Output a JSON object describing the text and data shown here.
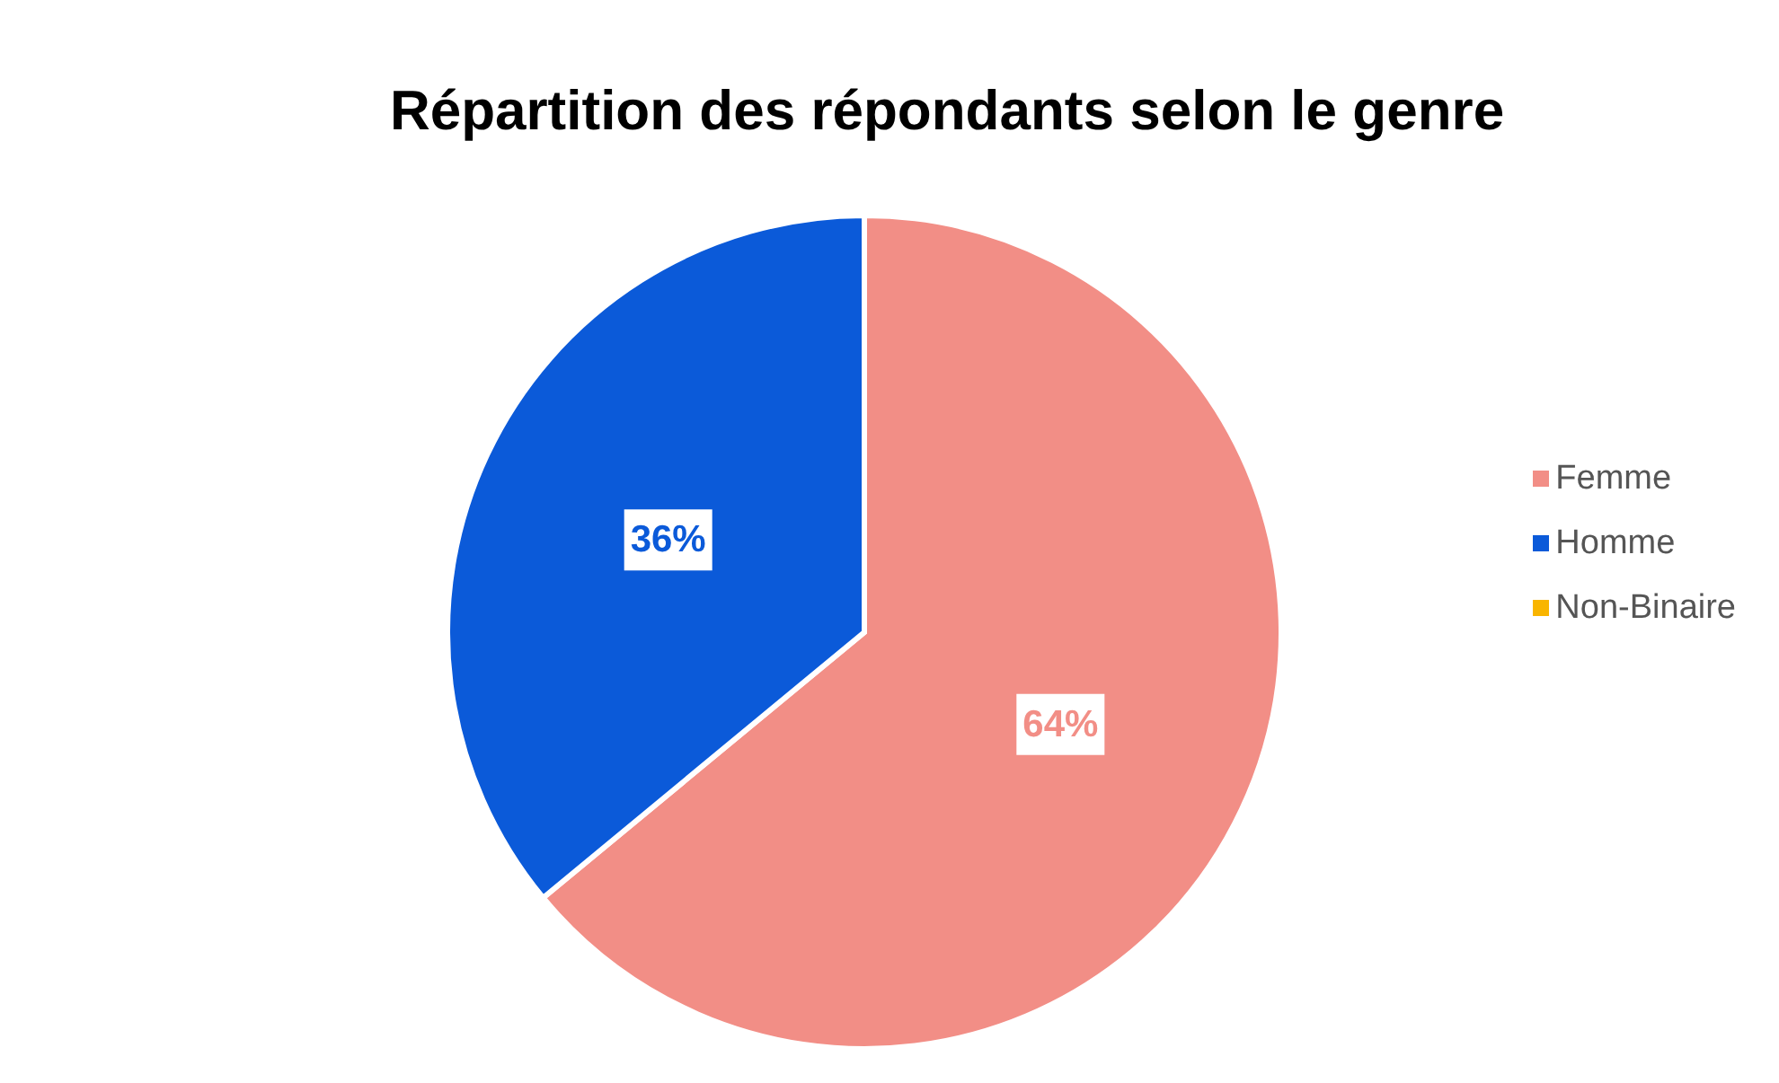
{
  "chart_data": {
    "type": "pie",
    "title": "Répartition des répondants selon le genre",
    "categories": [
      "Femme",
      "Homme",
      "Non-Binaire"
    ],
    "values": [
      64,
      36,
      0
    ],
    "colors": [
      "#f28e86",
      "#0b5ad9",
      "#f9b500"
    ],
    "value_labels": [
      "64%",
      "36%",
      null
    ],
    "legend": "right"
  }
}
